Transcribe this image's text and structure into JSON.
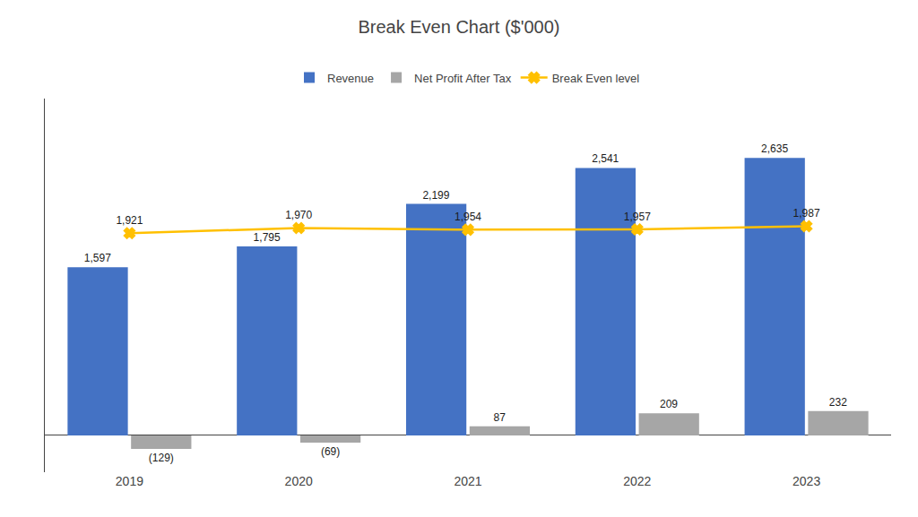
{
  "chart_data": {
    "type": "bar",
    "title": "Break Even Chart ($'000)",
    "categories": [
      "2019",
      "2020",
      "2021",
      "2022",
      "2023"
    ],
    "series": [
      {
        "name": "Revenue",
        "type": "bar",
        "color": "#4472C4",
        "values": [
          1597,
          1795,
          2199,
          2541,
          2635
        ],
        "value_labels": [
          "1,597",
          "1,795",
          "2,199",
          "2,541",
          "2,635"
        ]
      },
      {
        "name": "Net Profit After Tax",
        "type": "bar",
        "color": "#A6A6A6",
        "values": [
          -129,
          -69,
          87,
          209,
          232
        ],
        "value_labels": [
          "(129)",
          "(69)",
          "87",
          "209",
          "232"
        ]
      },
      {
        "name": "Break Even level",
        "type": "line",
        "color": "#FFC000",
        "marker": "x",
        "values": [
          1921,
          1970,
          1954,
          1957,
          1987
        ],
        "value_labels": [
          "1,921",
          "1,970",
          "1,954",
          "1,957",
          "1,987"
        ]
      }
    ],
    "ylim": [
      -350,
      3200
    ],
    "yticks": [],
    "tick_labels": "x",
    "data_labels": true,
    "grid": false,
    "legend": "top"
  }
}
